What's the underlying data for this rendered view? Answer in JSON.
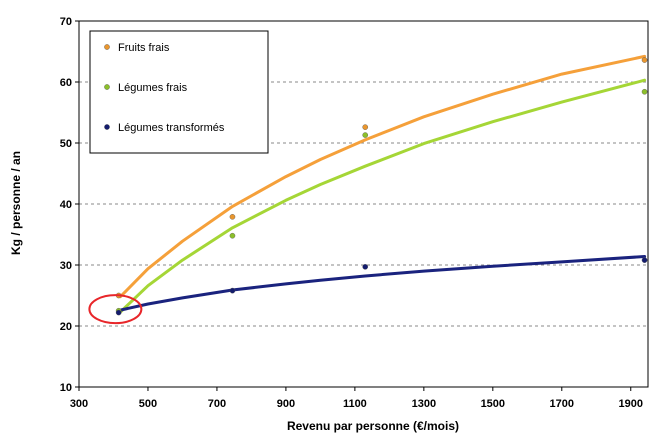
{
  "chart_data": {
    "type": "scatter",
    "xlabel": "Revenu par personne (€/mois)",
    "ylabel": "Kg / personne / an",
    "xlim": [
      300,
      1950
    ],
    "ylim": [
      10,
      70
    ],
    "x_ticks": [
      300,
      500,
      700,
      900,
      1100,
      1300,
      1500,
      1700,
      1900
    ],
    "y_ticks": [
      10,
      20,
      30,
      40,
      50,
      60,
      70
    ],
    "grid": "horizontal dashed",
    "legend_position": "top-left",
    "series": [
      {
        "name": "Fruits frais",
        "color": "#f5a03a",
        "marker_color": "#e9962e",
        "points": [
          [
            415,
            25.0
          ],
          [
            745,
            37.9
          ],
          [
            1130,
            52.6
          ],
          [
            1940,
            63.6
          ]
        ],
        "trend": [
          [
            420,
            24.8
          ],
          [
            500,
            29.4
          ],
          [
            600,
            33.9
          ],
          [
            745,
            39.6
          ],
          [
            900,
            44.5
          ],
          [
            1000,
            47.3
          ],
          [
            1130,
            50.5
          ],
          [
            1300,
            54.3
          ],
          [
            1500,
            58.0
          ],
          [
            1700,
            61.3
          ],
          [
            1940,
            64.2
          ]
        ]
      },
      {
        "name": "Légumes frais",
        "color": "#a5d636",
        "marker_color": "#8cbf2a",
        "points": [
          [
            415,
            22.5
          ],
          [
            745,
            34.8
          ],
          [
            1130,
            51.3
          ],
          [
            1940,
            58.4
          ]
        ],
        "trend": [
          [
            420,
            22.3
          ],
          [
            500,
            26.6
          ],
          [
            600,
            30.8
          ],
          [
            745,
            36.1
          ],
          [
            900,
            40.6
          ],
          [
            1000,
            43.2
          ],
          [
            1130,
            46.2
          ],
          [
            1300,
            49.9
          ],
          [
            1500,
            53.5
          ],
          [
            1700,
            56.7
          ],
          [
            1940,
            60.3
          ]
        ]
      },
      {
        "name": "Légumes transformés",
        "color": "#1a237e",
        "marker_color": "#141c6e",
        "points": [
          [
            415,
            22.2
          ],
          [
            745,
            25.8
          ],
          [
            1130,
            29.7
          ],
          [
            1940,
            30.8
          ]
        ],
        "trend": [
          [
            420,
            22.6
          ],
          [
            500,
            23.6
          ],
          [
            600,
            24.6
          ],
          [
            745,
            25.9
          ],
          [
            900,
            26.9
          ],
          [
            1000,
            27.5
          ],
          [
            1130,
            28.2
          ],
          [
            1300,
            29.0
          ],
          [
            1500,
            29.8
          ],
          [
            1700,
            30.5
          ],
          [
            1940,
            31.4
          ]
        ]
      }
    ],
    "annotation": {
      "shape": "ellipse",
      "color": "#e8262a",
      "center": [
        420,
        22.6
      ]
    }
  }
}
